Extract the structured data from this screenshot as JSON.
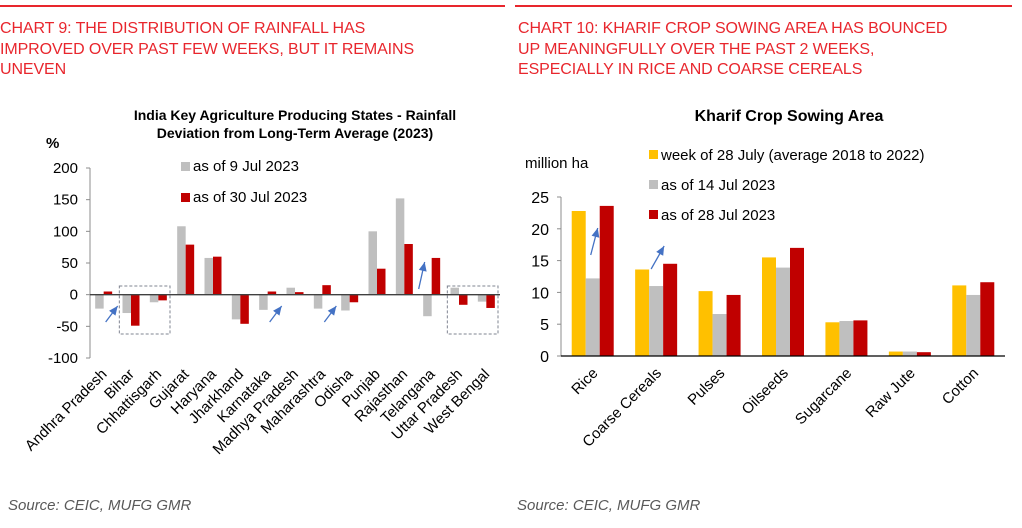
{
  "chart_data": [
    {
      "id": "chart9",
      "type": "bar",
      "headline": "CHART 9: THE DISTRIBUTION OF RAINFALL HAS IMPROVED OVER PAST FEW WEEKS, BUT IT REMAINS UNEVEN",
      "headline_lines": [
        "CHART 9: THE DISTRIBUTION OF RAINFALL HAS",
        "IMPROVED OVER PAST FEW WEEKS, BUT IT REMAINS",
        "UNEVEN"
      ],
      "title": "India Key Agriculture Producing States - Rainfall Deviation from Long-Term Average (2023)",
      "title_lines": [
        "India Key Agriculture Producing States - Rainfall",
        "Deviation from Long-Term Average (2023)"
      ],
      "ylabel": "%",
      "xlabel": "",
      "ylim": [
        -100,
        200
      ],
      "yticks": [
        200,
        150,
        100,
        50,
        0,
        -50,
        -100
      ],
      "grid": false,
      "legend_position": "top-center",
      "categories": [
        "Andhra Pradesh",
        "Bihar",
        "Chhattisgarh",
        "Gujarat",
        "Haryana",
        "Jharkhand",
        "Karnataka",
        "Madhya Pradesh",
        "Maharashtra",
        "Odisha",
        "Punjab",
        "Rajasthan",
        "Telangana",
        "Uttar Pradesh",
        "West Bengal"
      ],
      "series": [
        {
          "name": "as of 9 Jul 2023",
          "color": "#bfbfbf",
          "values": [
            -22,
            -29,
            -12,
            108,
            58,
            -39,
            -24,
            11,
            -22,
            -25,
            100,
            152,
            -34,
            11,
            -11
          ]
        },
        {
          "name": "as of 30 Jul 2023",
          "color": "#c00000",
          "values": [
            5,
            -49,
            -9,
            79,
            60,
            -46,
            5,
            4,
            15,
            -12,
            41,
            80,
            58,
            -16,
            -21
          ]
        }
      ],
      "annotations": {
        "arrows_near": [
          "Andhra Pradesh",
          "Karnataka",
          "Maharashtra",
          "Telangana"
        ],
        "boxes_around": [
          [
            "Bihar",
            "Chhattisgarh"
          ],
          [
            "Uttar Pradesh",
            "West Bengal"
          ]
        ],
        "arrow_color": "#4472c4",
        "box_color": "#7f8491"
      },
      "source": "Source: CEIC, MUFG GMR"
    },
    {
      "id": "chart10",
      "type": "bar",
      "headline": "CHART 10: KHARIF CROP SOWING AREA HAS BOUNCED UP MEANINGFULLY OVER THE PAST 2 WEEKS, ESPECIALLY IN RICE AND COARSE CEREALS",
      "headline_lines": [
        "CHART 10: KHARIF CROP SOWING AREA HAS BOUNCED",
        "UP MEANINGFULLY OVER THE PAST 2 WEEKS,",
        "ESPECIALLY IN RICE AND COARSE CEREALS"
      ],
      "title": "Kharif Crop Sowing Area",
      "ylabel": "million ha",
      "xlabel": "",
      "ylim": [
        0,
        25
      ],
      "yticks": [
        25,
        20,
        15,
        10,
        5,
        0
      ],
      "grid": false,
      "legend_position": "top-right",
      "categories": [
        "Rice",
        "Coarse Cereals",
        "Pulses",
        "Oilseeds",
        "Sugarcane",
        "Raw Jute",
        "Cotton"
      ],
      "series": [
        {
          "name": "week of 28 July (average 2018 to 2022)",
          "color": "#ffc000",
          "values": [
            22.8,
            13.6,
            10.2,
            15.5,
            5.3,
            0.7,
            11.1
          ]
        },
        {
          "name": "as of 14 Jul 2023",
          "color": "#bfbfbf",
          "values": [
            12.2,
            11.0,
            6.6,
            13.9,
            5.5,
            0.7,
            9.6
          ]
        },
        {
          "name": "as of 28 Jul 2023",
          "color": "#c00000",
          "values": [
            23.6,
            14.5,
            9.6,
            17.0,
            5.6,
            0.6,
            11.6
          ]
        }
      ],
      "annotations": {
        "arrows_near": [
          "Rice",
          "Coarse Cereals"
        ],
        "arrow_color": "#4472c4"
      },
      "source": "Source: CEIC, MUFG GMR"
    }
  ]
}
